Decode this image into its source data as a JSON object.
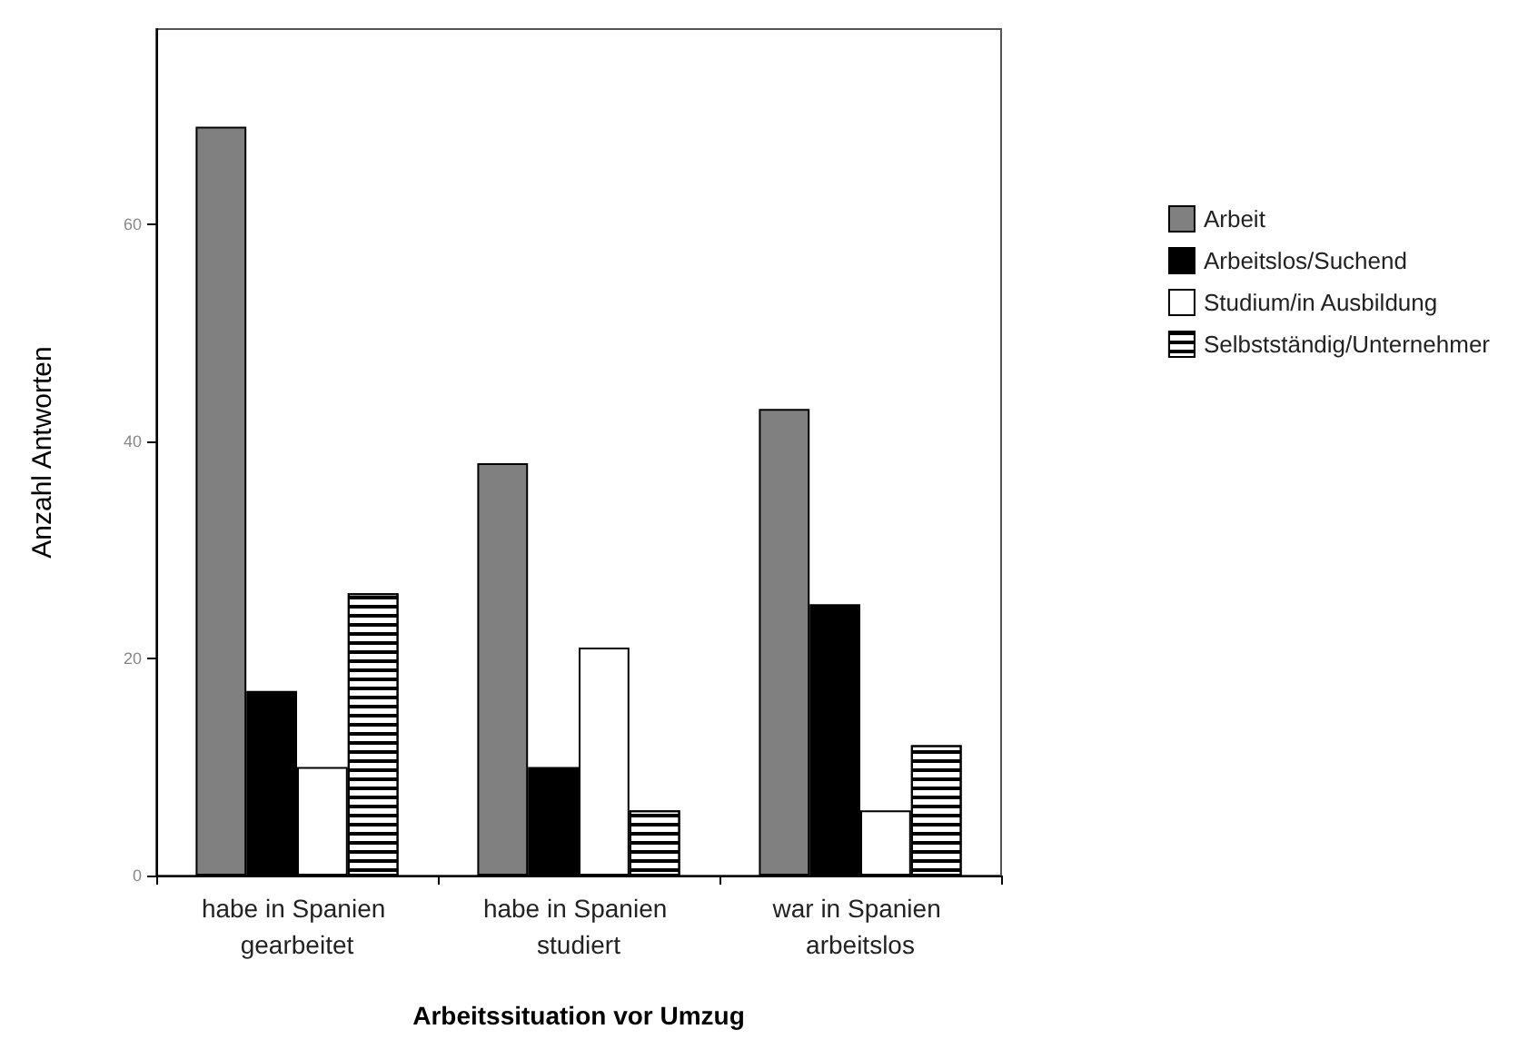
{
  "chart_data": {
    "type": "bar",
    "xlabel": "Arbeitssituation vor Umzug",
    "ylabel": "Anzahl Antworten",
    "categories": [
      "habe in Spanien gearbeitet",
      "habe in Spanien studiert",
      "war in Spanien arbeitslos"
    ],
    "series": [
      {
        "name": "Arbeit",
        "color": "#808080",
        "values": [
          69,
          38,
          43
        ]
      },
      {
        "name": "Arbeitslos/Suchend",
        "color": "#000000",
        "values": [
          17,
          10,
          25
        ]
      },
      {
        "name": "Studium/in Ausbildung",
        "color": "#ffffff",
        "values": [
          10,
          21,
          6
        ]
      },
      {
        "name": "Selbstständig/Unternehmer",
        "color": "#ffffff",
        "values": [
          26,
          6,
          12
        ]
      }
    ],
    "ylim": [
      0,
      78
    ],
    "yticks": [
      0,
      20,
      40,
      60
    ],
    "grid": false,
    "legend": "right"
  }
}
